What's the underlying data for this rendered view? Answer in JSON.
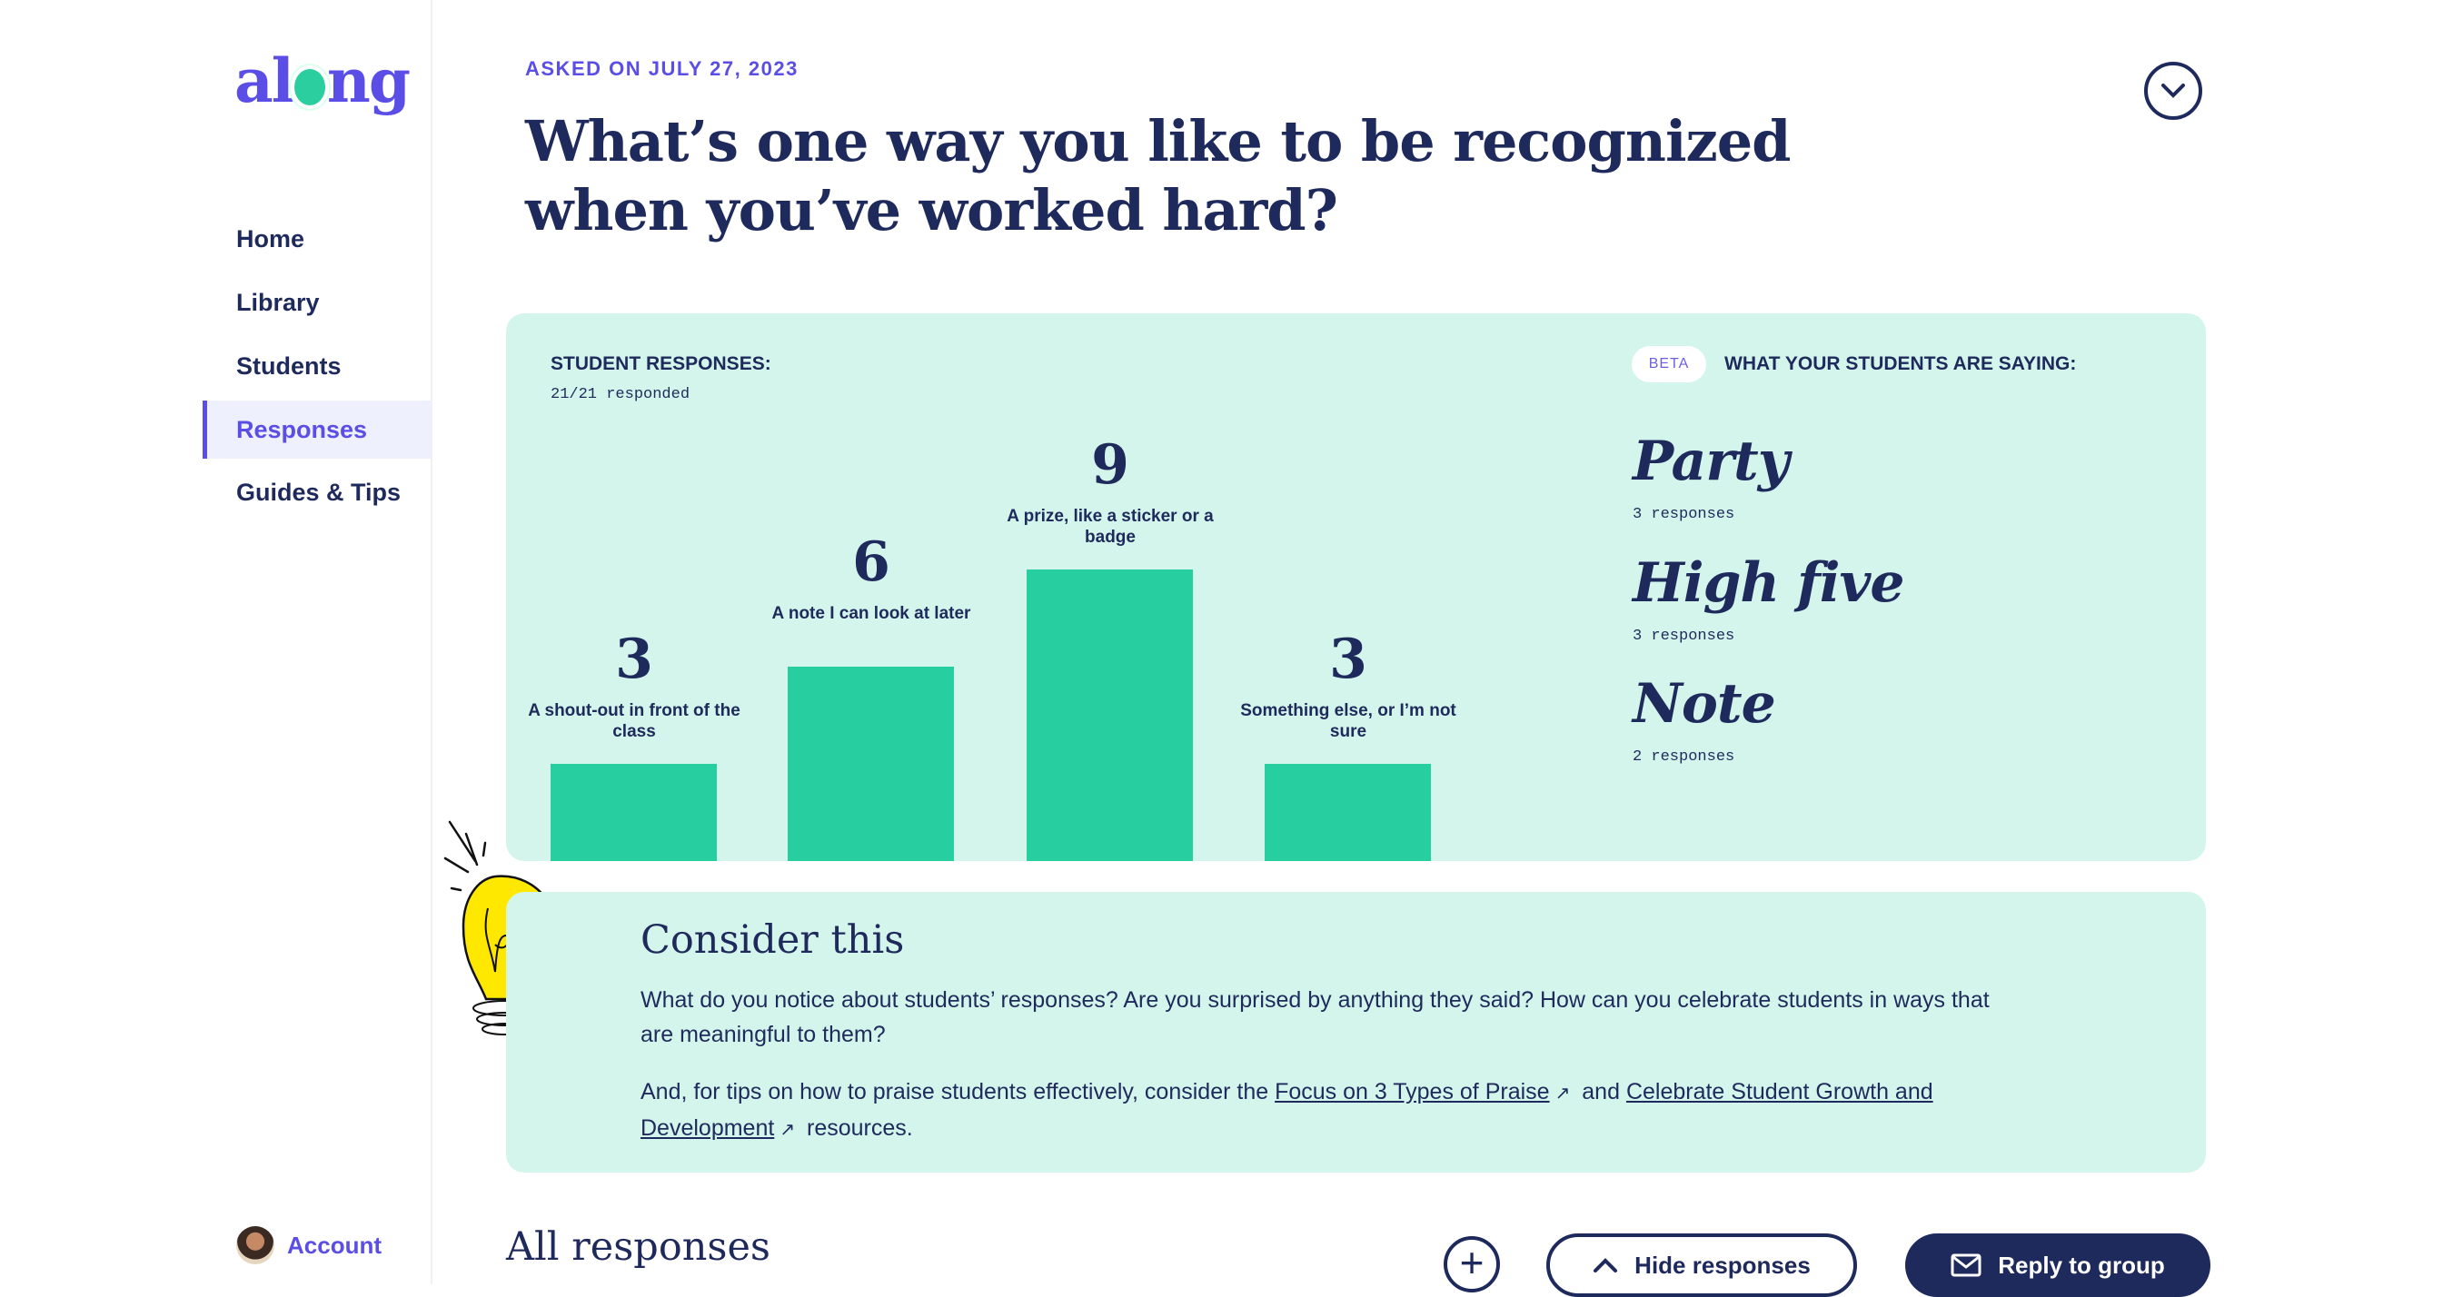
{
  "brand": {
    "logo": "along",
    "accent": "#5b4ee6",
    "bar_color": "#27cfa0",
    "panel_color": "#d4f5eb"
  },
  "sidebar": {
    "items": [
      {
        "label": "Home"
      },
      {
        "label": "Library"
      },
      {
        "label": "Students"
      },
      {
        "label": "Responses",
        "active": true
      },
      {
        "label": "Guides & Tips"
      }
    ],
    "account": "Account"
  },
  "header": {
    "asked": "ASKED ON JULY 27, 2023",
    "title": "What’s one way you like to be recognized when you’ve worked hard?",
    "toggle_icon": "chevron-down-icon"
  },
  "chart_data": {
    "type": "bar",
    "title": "STUDENT RESPONSES:",
    "subtitle": "21/21 responded",
    "categories": [
      "A shout-out in front of the class",
      "A note I can look at later",
      "A prize, like a sticker or a badge",
      "Something else, or I’m not sure"
    ],
    "values": [
      3,
      6,
      9,
      3
    ]
  },
  "saying": {
    "badge": "BETA",
    "label": "WHAT YOUR STUDENTS ARE  SAYING:",
    "words": [
      {
        "word": "Party",
        "count": "3 responses"
      },
      {
        "word": "High five",
        "count": "3 responses"
      },
      {
        "word": "Note",
        "count": "2 responses"
      }
    ]
  },
  "consider": {
    "title": "Consider this",
    "p1": "What do you notice about students’ responses? Are you surprised by anything they said? How can you celebrate students in ways that are meaningful to them?",
    "p2_pre": "And, for tips on how to praise students effectively, consider the ",
    "link1": "Focus on 3 Types of Praise",
    "p2_mid": " and ",
    "link2": "Celebrate Student Growth and Development",
    "p2_post": " resources."
  },
  "footer": {
    "all_responses": "All responses",
    "hide": "Hide responses",
    "reply": "Reply to group"
  }
}
